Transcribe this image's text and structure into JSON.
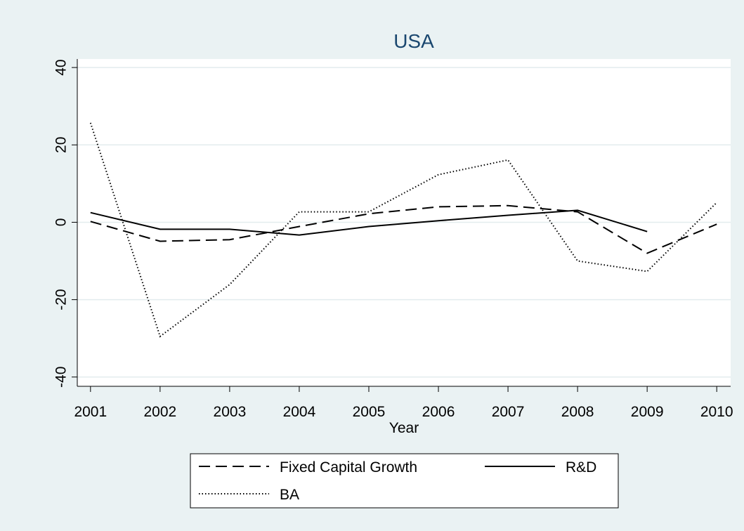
{
  "chart_data": {
    "type": "line",
    "title": "USA",
    "x_label": "Year",
    "x": [
      2001,
      2002,
      2003,
      2004,
      2005,
      2006,
      2007,
      2008,
      2009,
      2010
    ],
    "xlim": [
      2000.81,
      2010.2
    ],
    "xticks": [
      2001,
      2002,
      2003,
      2004,
      2005,
      2006,
      2007,
      2008,
      2009,
      2010
    ],
    "ylim": [
      -42.4,
      42.2
    ],
    "yticks": [
      -40,
      -20,
      0,
      20,
      40
    ],
    "grid": true,
    "series": [
      {
        "name": "Fixed Capital Growth",
        "color": "#000000",
        "style": "dash",
        "values": [
          0.2,
          -4.9,
          -4.5,
          -1.1,
          2.2,
          4.0,
          4.3,
          2.7,
          -8.0,
          -0.5
        ]
      },
      {
        "name": "R&D",
        "color": "#000000",
        "style": "solid",
        "values": [
          2.5,
          -1.8,
          -1.8,
          -3.3,
          -1.1,
          0.4,
          1.8,
          3.1,
          -2.4,
          null
        ]
      },
      {
        "name": "BA",
        "color": "#000000",
        "style": "dot",
        "values": [
          25.7,
          -29.5,
          -16.1,
          2.7,
          2.7,
          12.3,
          16.1,
          -10.0,
          -12.7,
          5.1
        ]
      }
    ]
  }
}
